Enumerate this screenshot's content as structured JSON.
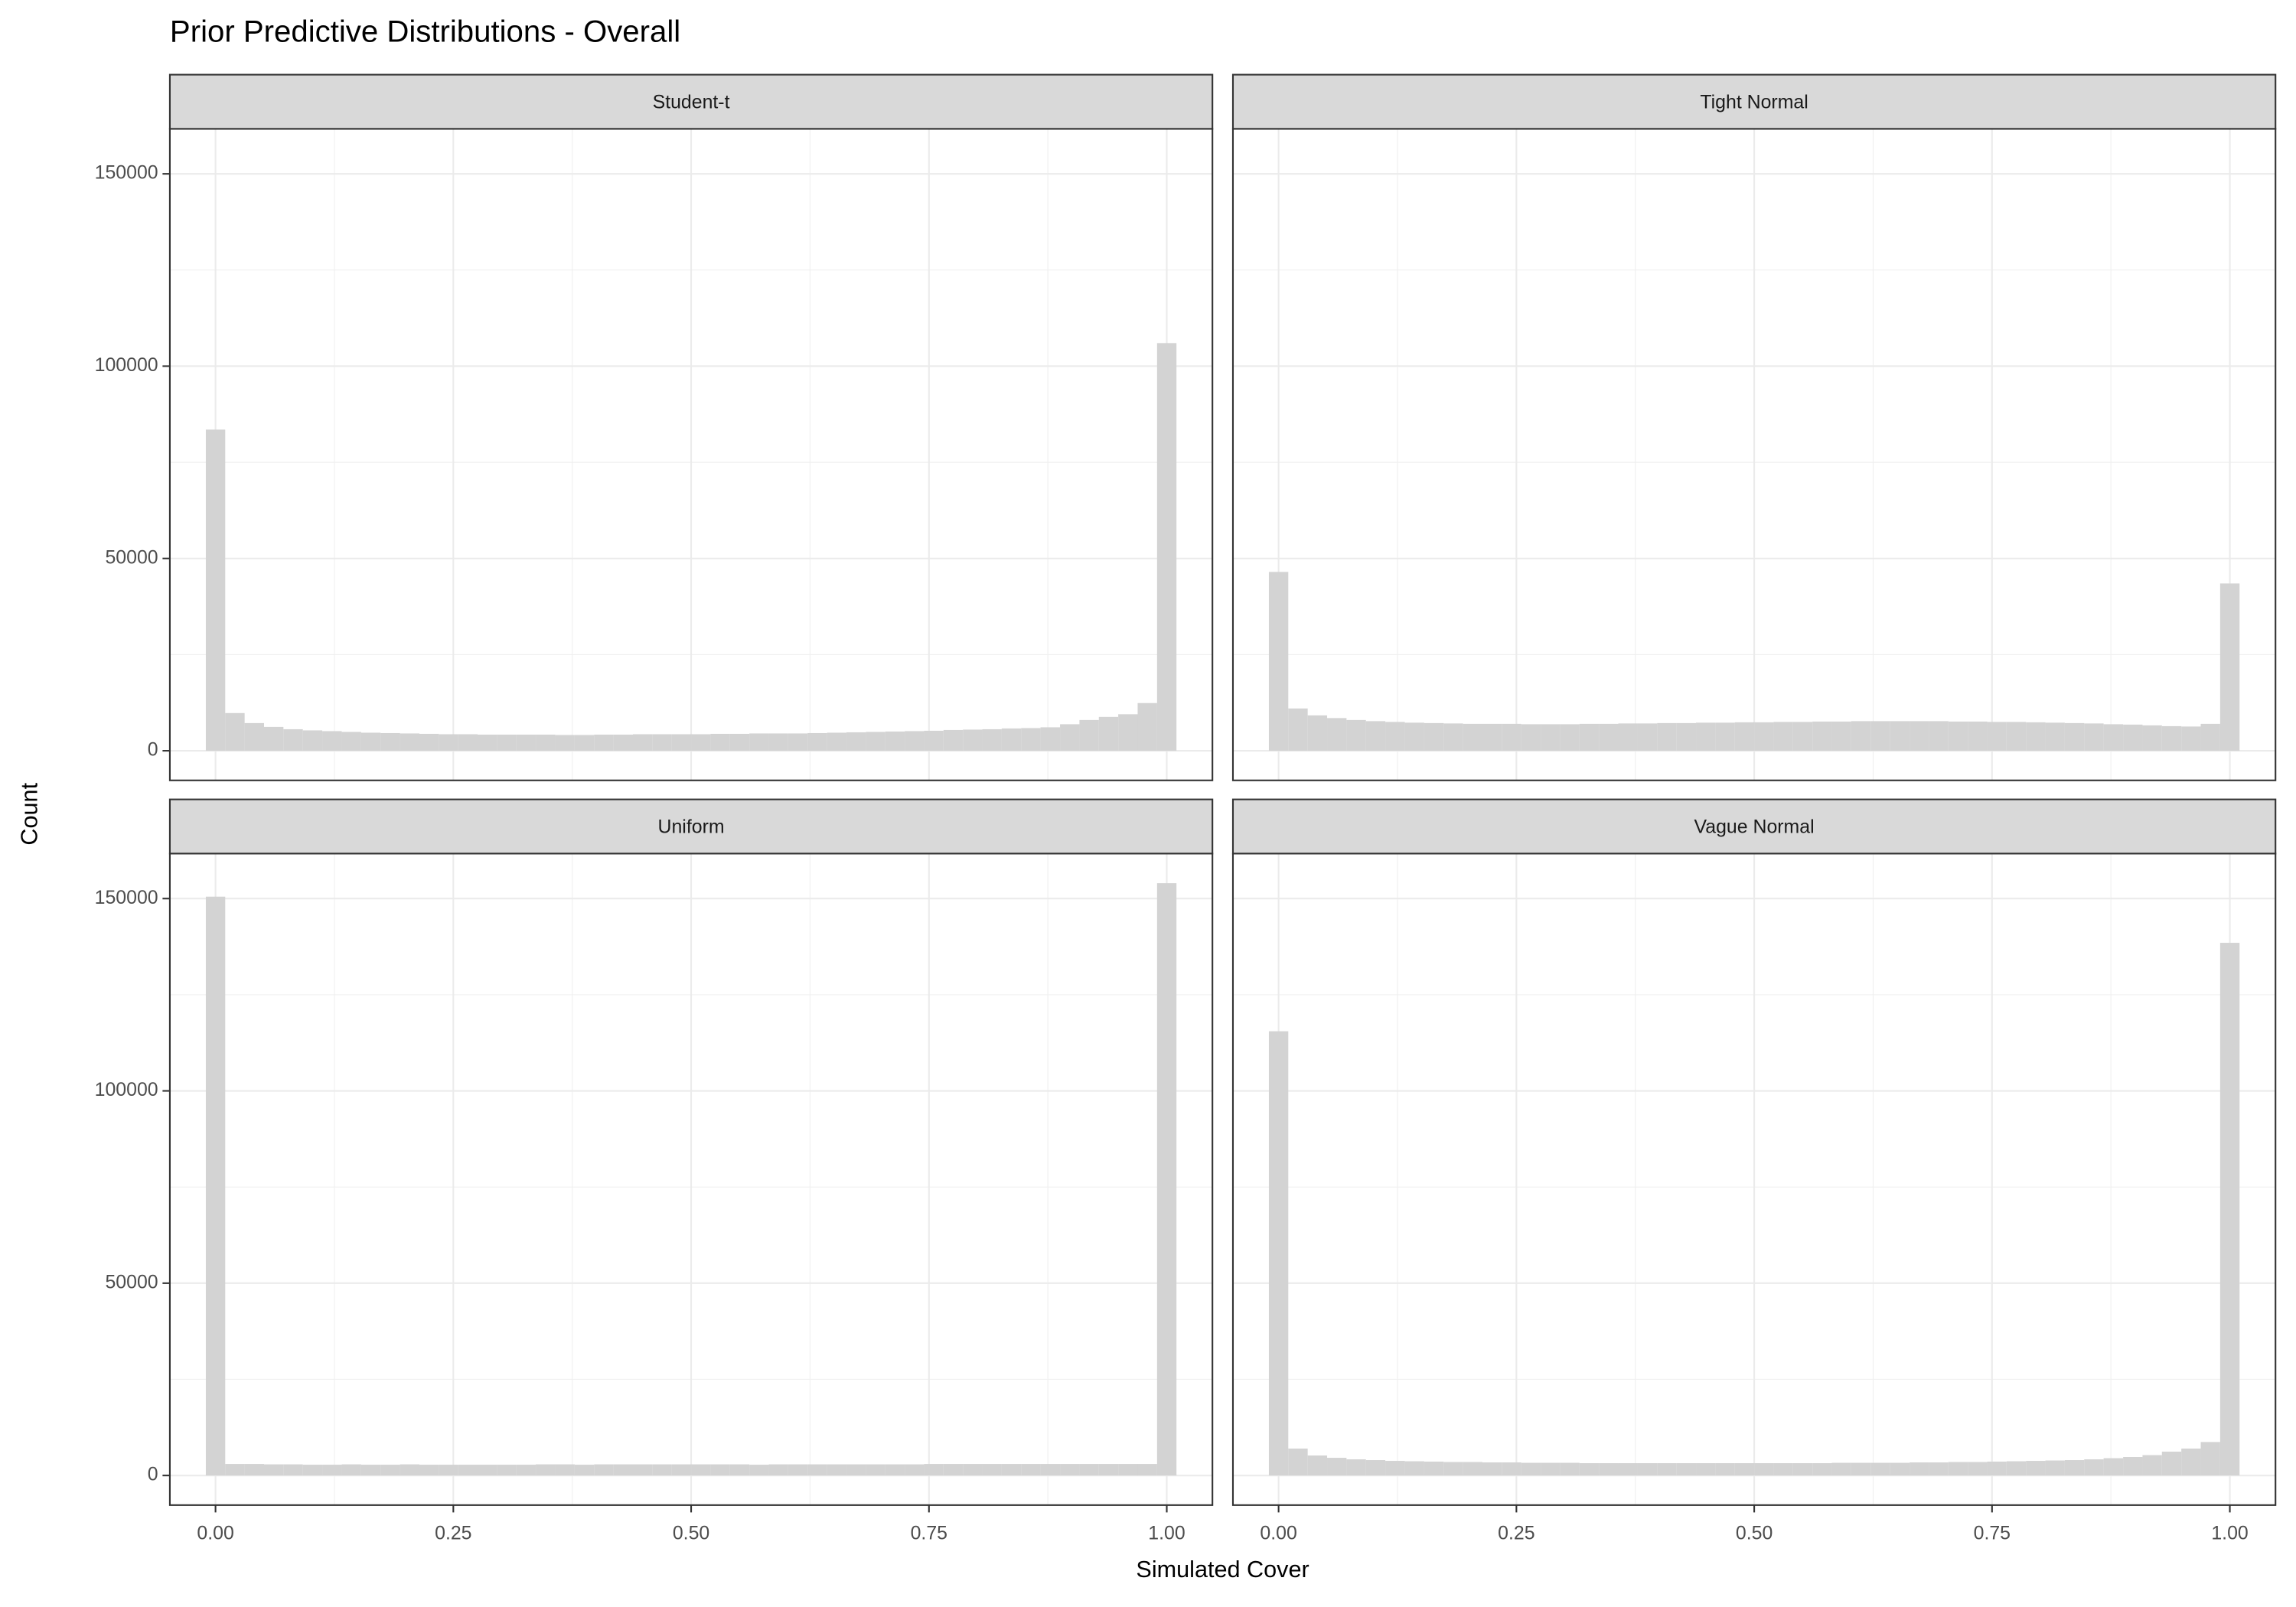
{
  "chart_data": {
    "type": "histogram",
    "title": "Prior Predictive Distributions - Overall",
    "x_label": "Simulated Cover",
    "y_label": "Count",
    "color": "#d3d3d3",
    "grid": true,
    "bins": [
      -0.0102,
      0.0102,
      0.0306,
      0.051,
      0.0714,
      0.0918,
      0.1122,
      0.1327,
      0.1531,
      0.1735,
      0.1939,
      0.2143,
      0.2347,
      0.2551,
      0.2755,
      0.2959,
      0.3163,
      0.3367,
      0.3571,
      0.3776,
      0.398,
      0.4184,
      0.4388,
      0.4592,
      0.4796,
      0.5,
      0.5204,
      0.5408,
      0.5612,
      0.5816,
      0.602,
      0.6224,
      0.6429,
      0.6633,
      0.6837,
      0.7041,
      0.7245,
      0.7449,
      0.7653,
      0.7857,
      0.8061,
      0.8265,
      0.8469,
      0.8673,
      0.8878,
      0.9082,
      0.9286,
      0.949,
      0.9694,
      0.9898,
      1.0102
    ],
    "xlim": [
      -0.048,
      1.048
    ],
    "ylim": [
      -7700,
      161700
    ],
    "xticks": [
      {
        "value": 0,
        "label": "0.00"
      },
      {
        "value": 0.25,
        "label": "0.25"
      },
      {
        "value": 0.5,
        "label": "0.50"
      },
      {
        "value": 0.75,
        "label": "0.75"
      },
      {
        "value": 1,
        "label": "1.00"
      }
    ],
    "yticks": [
      0,
      50000,
      100000,
      150000
    ],
    "panels": [
      {
        "name": "Student-t",
        "values": [
          83500,
          9800,
          7200,
          6200,
          5600,
          5300,
          5100,
          4900,
          4700,
          4600,
          4500,
          4400,
          4300,
          4300,
          4200,
          4200,
          4200,
          4200,
          4100,
          4100,
          4200,
          4200,
          4300,
          4300,
          4300,
          4300,
          4400,
          4400,
          4500,
          4500,
          4500,
          4600,
          4700,
          4800,
          4900,
          5000,
          5100,
          5200,
          5400,
          5500,
          5600,
          5800,
          5900,
          6100,
          6900,
          8000,
          8800,
          9500,
          12400,
          106000
        ]
      },
      {
        "name": "Tight Normal",
        "values": [
          46500,
          11000,
          9200,
          8500,
          8000,
          7700,
          7500,
          7300,
          7200,
          7100,
          7000,
          7000,
          7000,
          6900,
          6900,
          6900,
          7000,
          7000,
          7100,
          7100,
          7200,
          7200,
          7300,
          7300,
          7400,
          7400,
          7500,
          7500,
          7600,
          7600,
          7700,
          7700,
          7700,
          7700,
          7700,
          7600,
          7600,
          7500,
          7500,
          7400,
          7300,
          7200,
          7100,
          6900,
          6800,
          6600,
          6400,
          6300,
          7000,
          43500
        ]
      },
      {
        "name": "Uniform",
        "values": [
          150500,
          3000,
          3000,
          2900,
          2900,
          2800,
          2800,
          2900,
          2800,
          2800,
          2900,
          2800,
          2800,
          2800,
          2800,
          2800,
          2800,
          2900,
          2900,
          2800,
          2900,
          2900,
          2900,
          2900,
          2900,
          2900,
          2900,
          2900,
          2800,
          2900,
          2900,
          2900,
          2900,
          2900,
          2900,
          2900,
          2900,
          3000,
          3000,
          3000,
          3000,
          3000,
          3000,
          3000,
          3000,
          3000,
          3000,
          3000,
          3000,
          154000
        ]
      },
      {
        "name": "Vague Normal",
        "values": [
          115500,
          7000,
          5200,
          4600,
          4200,
          4000,
          3800,
          3700,
          3600,
          3500,
          3500,
          3400,
          3400,
          3300,
          3300,
          3300,
          3200,
          3200,
          3200,
          3200,
          3200,
          3200,
          3200,
          3200,
          3200,
          3200,
          3200,
          3200,
          3200,
          3300,
          3300,
          3300,
          3300,
          3400,
          3400,
          3500,
          3500,
          3600,
          3700,
          3800,
          3900,
          4000,
          4200,
          4500,
          4800,
          5300,
          6200,
          7000,
          8700,
          138500
        ]
      }
    ]
  }
}
